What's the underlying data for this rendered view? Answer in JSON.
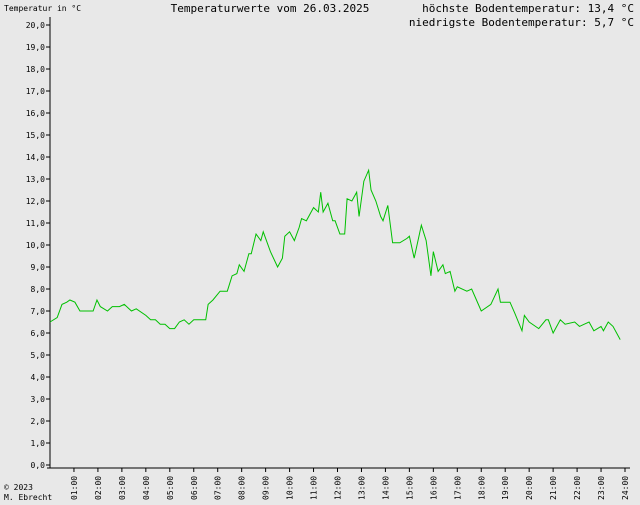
{
  "chart_data": {
    "type": "line",
    "title": "Temperaturwerte vom 26.03.2025",
    "y_label": "Temperatur in °C",
    "annotations": [
      "höchste Bodentemperatur: 13,4 °C",
      "niedrigste Bodentemperatur: 5,7 °C"
    ],
    "footer": [
      "© 2023",
      "M. Ebrecht"
    ],
    "xlim": [
      0,
      24
    ],
    "ylim": [
      0,
      20
    ],
    "xticks": [
      {
        "value": 1,
        "label": "01:00"
      },
      {
        "value": 2,
        "label": "02:00"
      },
      {
        "value": 3,
        "label": "03:00"
      },
      {
        "value": 4,
        "label": "04:00"
      },
      {
        "value": 5,
        "label": "05:00"
      },
      {
        "value": 6,
        "label": "06:00"
      },
      {
        "value": 7,
        "label": "07:00"
      },
      {
        "value": 8,
        "label": "08:00"
      },
      {
        "value": 9,
        "label": "09:00"
      },
      {
        "value": 10,
        "label": "10:00"
      },
      {
        "value": 11,
        "label": "11:00"
      },
      {
        "value": 12,
        "label": "12:00"
      },
      {
        "value": 13,
        "label": "13:00"
      },
      {
        "value": 14,
        "label": "14:00"
      },
      {
        "value": 15,
        "label": "15:00"
      },
      {
        "value": 16,
        "label": "16:00"
      },
      {
        "value": 17,
        "label": "17:00"
      },
      {
        "value": 18,
        "label": "18:00"
      },
      {
        "value": 19,
        "label": "19:00"
      },
      {
        "value": 20,
        "label": "20:00"
      },
      {
        "value": 21,
        "label": "21:00"
      },
      {
        "value": 22,
        "label": "22:00"
      },
      {
        "value": 23,
        "label": "23:00"
      },
      {
        "value": 24,
        "label": "24:00"
      }
    ],
    "yticks": [
      {
        "value": 0,
        "label": "0,0"
      },
      {
        "value": 1,
        "label": "1,0"
      },
      {
        "value": 2,
        "label": "2,0"
      },
      {
        "value": 3,
        "label": "3,0"
      },
      {
        "value": 4,
        "label": "4,0"
      },
      {
        "value": 5,
        "label": "5,0"
      },
      {
        "value": 6,
        "label": "6,0"
      },
      {
        "value": 7,
        "label": "7,0"
      },
      {
        "value": 8,
        "label": "8,0"
      },
      {
        "value": 9,
        "label": "9,0"
      },
      {
        "value": 10,
        "label": "10,0"
      },
      {
        "value": 11,
        "label": "11,0"
      },
      {
        "value": 12,
        "label": "12,0"
      },
      {
        "value": 13,
        "label": "13,0"
      },
      {
        "value": 14,
        "label": "14,0"
      },
      {
        "value": 15,
        "label": "15,0"
      },
      {
        "value": 16,
        "label": "16,0"
      },
      {
        "value": 17,
        "label": "17,0"
      },
      {
        "value": 18,
        "label": "18,0"
      },
      {
        "value": 19,
        "label": "19,0"
      },
      {
        "value": 20,
        "label": "20,0"
      }
    ],
    "x": [
      0,
      0.3,
      0.5,
      0.7,
      0.83,
      1.04,
      1.25,
      1.8,
      1.96,
      2.1,
      2.4,
      2.6,
      2.9,
      3.1,
      3.4,
      3.6,
      4.0,
      4.2,
      4.4,
      4.6,
      4.8,
      5.0,
      5.2,
      5.4,
      5.6,
      5.8,
      6.0,
      6.5,
      6.6,
      6.8,
      7.1,
      7.4,
      7.6,
      7.8,
      7.9,
      8.1,
      8.3,
      8.4,
      8.6,
      8.8,
      8.9,
      9.2,
      9.5,
      9.7,
      9.8,
      10.0,
      10.2,
      10.4,
      10.5,
      10.7,
      10.9,
      11.0,
      11.2,
      11.3,
      11.4,
      11.6,
      11.8,
      11.9,
      12.1,
      12.3,
      12.4,
      12.6,
      12.8,
      12.9,
      13.1,
      13.3,
      13.4,
      13.6,
      13.8,
      13.9,
      14.1,
      14.3,
      14.6,
      14.9,
      15.0,
      15.2,
      15.5,
      15.7,
      15.9,
      16.0,
      16.2,
      16.4,
      16.5,
      16.7,
      16.9,
      17.0,
      17.4,
      17.6,
      17.8,
      18.0,
      18.4,
      18.7,
      18.8,
      19.2,
      19.4,
      19.7,
      19.8,
      20.0,
      20.4,
      20.7,
      20.8,
      21.0,
      21.3,
      21.5,
      21.9,
      22.1,
      22.3,
      22.5,
      22.7,
      23.0,
      23.1,
      23.3,
      23.5,
      23.8
    ],
    "series": [
      {
        "color": "#00c000",
        "values": [
          6.5,
          6.7,
          7.3,
          7.4,
          7.5,
          7.4,
          7.0,
          7.0,
          7.5,
          7.2,
          7.0,
          7.2,
          7.2,
          7.3,
          7.0,
          7.1,
          6.8,
          6.6,
          6.6,
          6.4,
          6.4,
          6.2,
          6.2,
          6.5,
          6.6,
          6.4,
          6.6,
          6.6,
          7.3,
          7.5,
          7.9,
          7.9,
          8.6,
          8.7,
          9.1,
          8.8,
          9.6,
          9.6,
          10.5,
          10.2,
          10.6,
          9.7,
          9.0,
          9.4,
          10.4,
          10.6,
          10.2,
          10.8,
          11.2,
          11.1,
          11.5,
          11.7,
          11.5,
          12.4,
          11.5,
          11.9,
          11.1,
          11.1,
          10.5,
          10.5,
          12.1,
          12.0,
          12.4,
          11.3,
          12.9,
          13.4,
          12.5,
          12.0,
          11.3,
          11.1,
          11.8,
          10.1,
          10.1,
          10.3,
          10.4,
          9.4,
          10.9,
          10.2,
          8.6,
          9.7,
          8.8,
          9.1,
          8.7,
          8.8,
          7.9,
          8.1,
          7.9,
          8.0,
          7.5,
          7.0,
          7.3,
          8.0,
          7.4,
          7.4,
          6.9,
          6.1,
          6.8,
          6.5,
          6.2,
          6.6,
          6.6,
          6.0,
          6.6,
          6.4,
          6.5,
          6.3,
          6.4,
          6.5,
          6.1,
          6.3,
          6.1,
          6.5,
          6.3,
          5.7
        ]
      }
    ]
  }
}
